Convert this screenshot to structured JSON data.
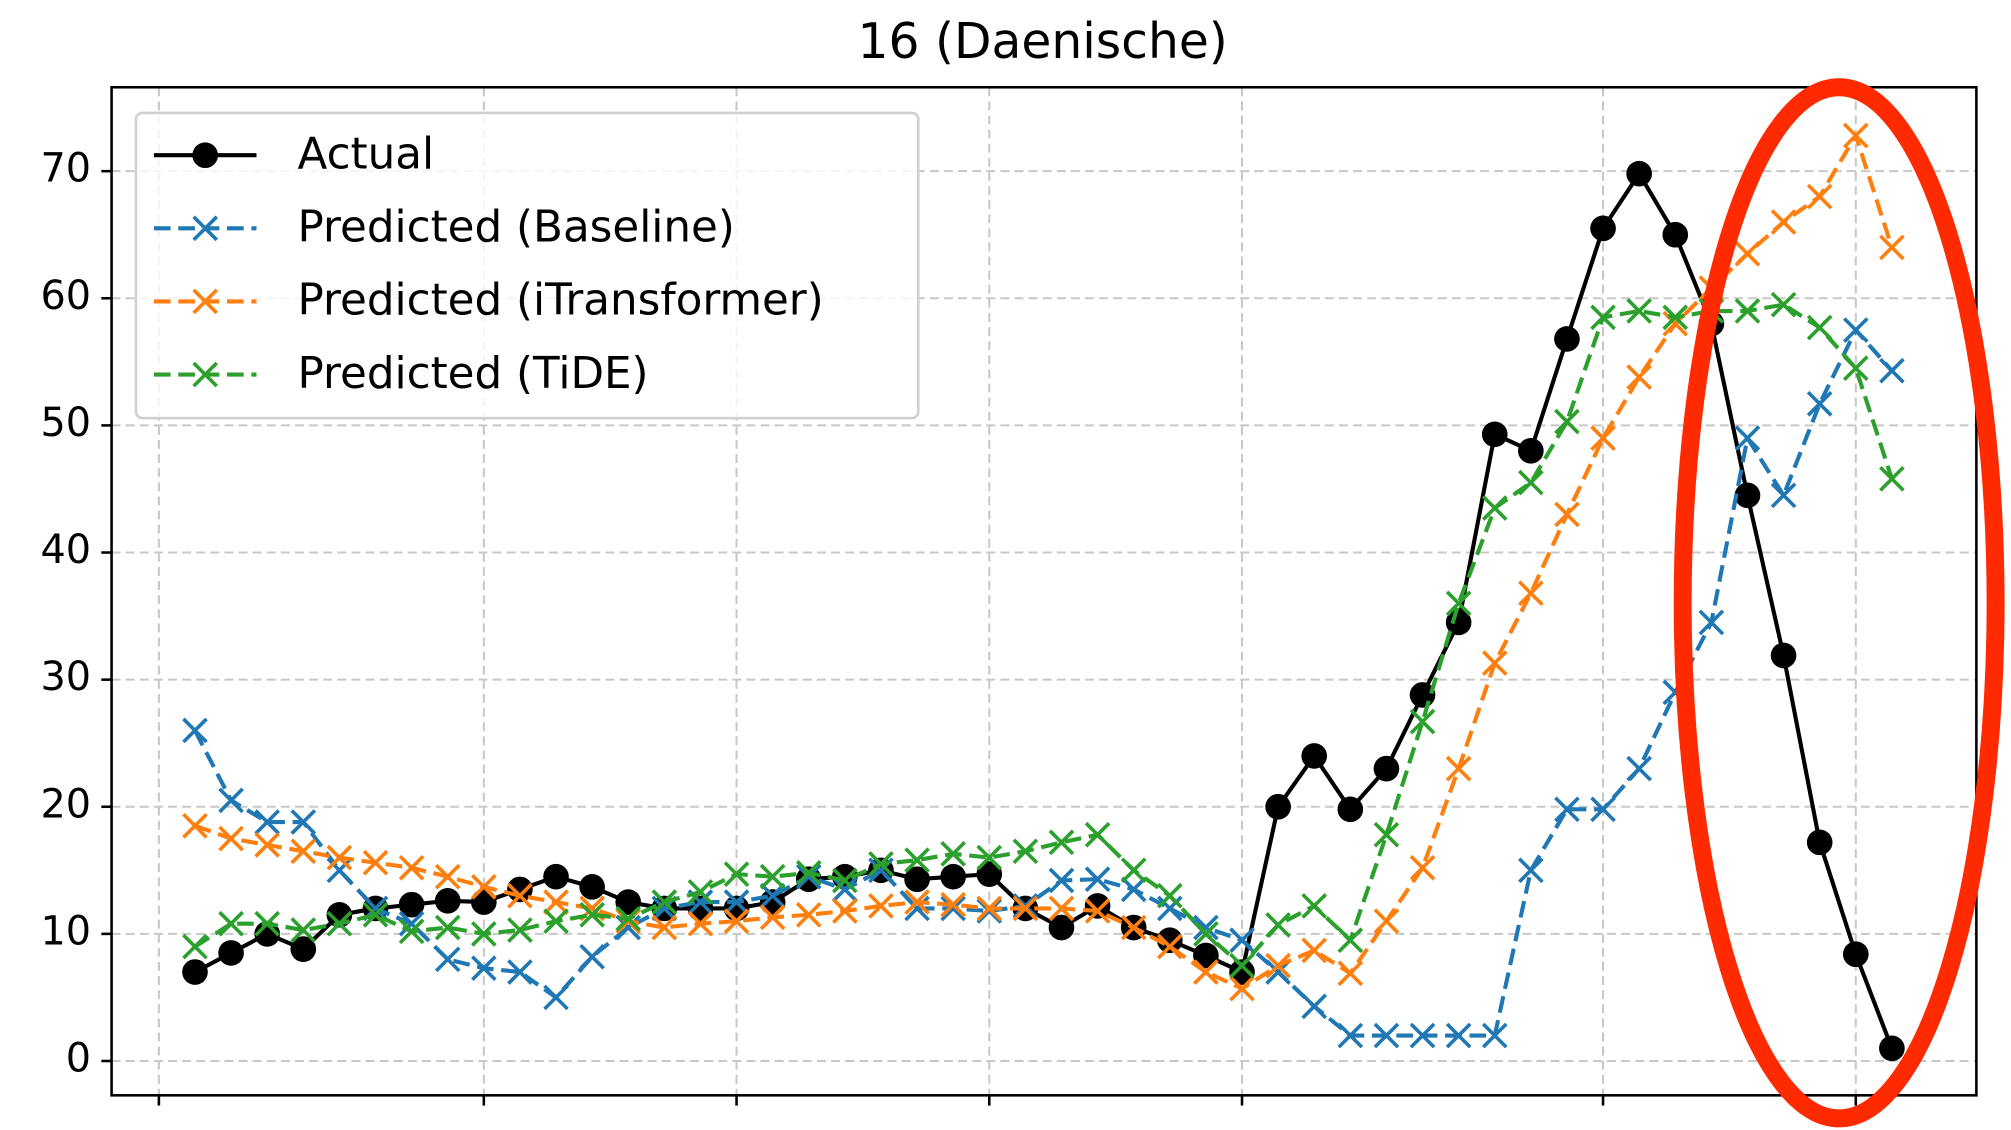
{
  "chart_data": {
    "type": "line",
    "title": "16 (Daenische)",
    "x": [
      0,
      1,
      2,
      3,
      4,
      5,
      6,
      7,
      8,
      9,
      10,
      11,
      12,
      13,
      14,
      15,
      16,
      17,
      18,
      19,
      20,
      21,
      22,
      23,
      24,
      25,
      26,
      27,
      28,
      29,
      30,
      31,
      32,
      33,
      34,
      35,
      36,
      37,
      38,
      39,
      40,
      41,
      42,
      43,
      44,
      45,
      46,
      47
    ],
    "xlim": [
      -2.31,
      49.34
    ],
    "xticks": [
      -1,
      8,
      15,
      22,
      29,
      39,
      46
    ],
    "ylim": [
      -2.7,
      76.6
    ],
    "yticks": [
      0,
      10,
      20,
      30,
      40,
      50,
      60,
      70
    ],
    "grid": true,
    "legend": "upper left",
    "series": [
      {
        "name": "Actual",
        "color": "#000000",
        "marker": "o",
        "dash": "solid",
        "values": [
          7,
          8.5,
          10,
          8.8,
          11.5,
          12,
          12.3,
          12.6,
          12.5,
          13.5,
          14.5,
          13.7,
          12.5,
          12,
          12,
          12,
          12.5,
          14.3,
          14.5,
          15,
          14.3,
          14.5,
          14.7,
          12,
          10.5,
          12.2,
          10.5,
          9.5,
          8.3,
          7,
          20,
          24,
          19.8,
          23,
          28.8,
          34.5,
          49.3,
          48,
          56.8,
          65.5,
          69.8,
          65,
          58,
          44.5,
          31.9,
          17.2,
          8.4,
          1
        ]
      },
      {
        "name": "Predicted (Baseline)",
        "color": "#1f77b4",
        "marker": "x",
        "dash": "dashed",
        "values": [
          26,
          20.5,
          18.8,
          18.8,
          15,
          12,
          10.8,
          8,
          7.3,
          7,
          5,
          8.2,
          10.5,
          12,
          12.5,
          12.5,
          13,
          14.5,
          13.5,
          15,
          12,
          12,
          11.8,
          12.2,
          14.2,
          14.3,
          13.5,
          12,
          10.5,
          9.5,
          7,
          4.3,
          2,
          2,
          2,
          2,
          2,
          15,
          19.8,
          19.8,
          23,
          29,
          34.5,
          49,
          44.5,
          51.7,
          57.5,
          54.3
        ]
      },
      {
        "name": "Predicted (iTransformer)",
        "color": "#ff7f0e",
        "marker": "x",
        "dash": "dashed",
        "values": [
          18.5,
          17.5,
          17,
          16.5,
          16,
          15.6,
          15.2,
          14.5,
          13.7,
          13,
          12.5,
          12,
          11,
          10.5,
          10.8,
          11,
          11.3,
          11.5,
          11.8,
          12.2,
          12.5,
          12.3,
          12,
          12,
          12,
          11.8,
          10.5,
          9,
          7,
          5.7,
          7.5,
          8.7,
          6.9,
          11,
          15.2,
          23,
          31.3,
          36.8,
          43,
          49,
          53.8,
          58,
          60.8,
          63.5,
          66,
          68,
          72.8,
          64
        ]
      },
      {
        "name": "Predicted (TiDE)",
        "color": "#2ca02c",
        "marker": "x",
        "dash": "dashed",
        "values": [
          9,
          10.8,
          10.8,
          10.3,
          10.8,
          11.5,
          10.2,
          10.5,
          10,
          10.3,
          11,
          11.5,
          11.2,
          12.5,
          13.3,
          14.7,
          14.5,
          14.8,
          14.2,
          15.5,
          15.8,
          16.3,
          16,
          16.5,
          17.2,
          17.8,
          15,
          13,
          10,
          7.5,
          10.7,
          12.2,
          9.5,
          17.8,
          26.7,
          36,
          43.5,
          45.5,
          50.3,
          58.5,
          59,
          58.5,
          59,
          59,
          59.5,
          57.7,
          54.5,
          45.8
        ]
      }
    ]
  }
}
